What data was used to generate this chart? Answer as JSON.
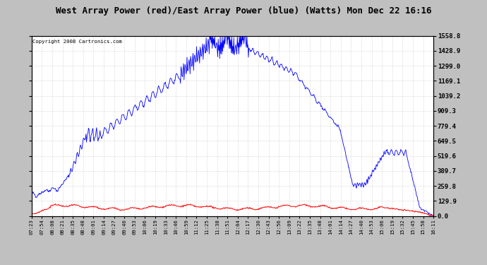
{
  "title": "West Array Power (red)/East Array Power (blue) (Watts) Mon Dec 22 16:16",
  "copyright": "Copyright 2008 Cartronics.com",
  "plot_bg_color": "#ffffff",
  "title_color": "#000000",
  "grid_color": "#aaaaaa",
  "y_labels": [
    0.0,
    129.9,
    259.8,
    389.7,
    519.6,
    649.5,
    779.4,
    909.3,
    1039.2,
    1169.1,
    1299.0,
    1428.9,
    1558.8
  ],
  "y_min": 0.0,
  "y_max": 1558.8,
  "x_tick_labels": [
    "07:23",
    "07:54",
    "08:08",
    "08:21",
    "08:35",
    "08:48",
    "09:01",
    "09:14",
    "09:27",
    "09:40",
    "09:53",
    "10:06",
    "10:19",
    "10:33",
    "10:46",
    "10:59",
    "11:12",
    "11:25",
    "11:38",
    "11:51",
    "12:04",
    "12:17",
    "12:30",
    "12:43",
    "12:56",
    "13:09",
    "13:22",
    "13:35",
    "13:48",
    "14:01",
    "14:14",
    "14:27",
    "14:40",
    "14:53",
    "15:06",
    "15:19",
    "15:32",
    "15:45",
    "15:58",
    "16:11"
  ],
  "blue_color": "#0000ff",
  "red_color": "#ff0000",
  "outer_bg": "#c0c0c0",
  "border_color": "#000000"
}
